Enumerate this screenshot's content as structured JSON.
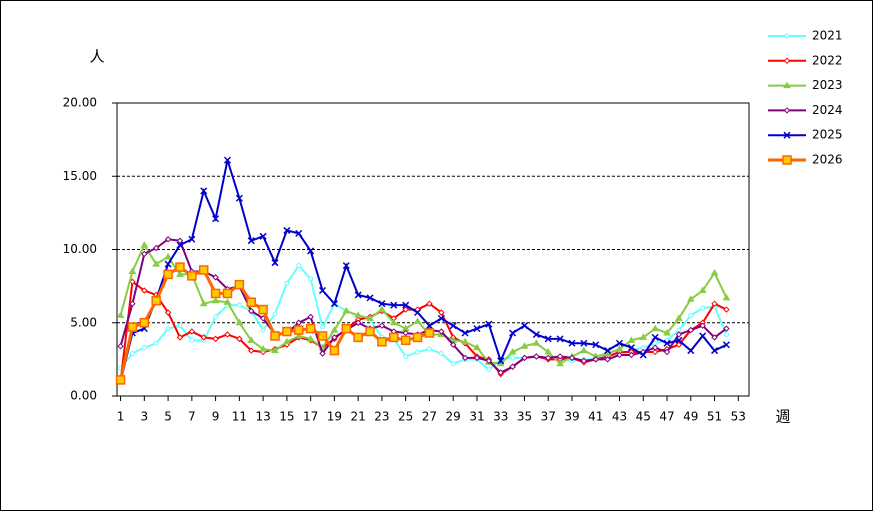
{
  "chart_data": {
    "type": "line",
    "y_label": "人",
    "x_label": "週",
    "x": [
      1,
      2,
      3,
      4,
      5,
      6,
      7,
      8,
      9,
      10,
      11,
      12,
      13,
      14,
      15,
      16,
      17,
      18,
      19,
      20,
      21,
      22,
      23,
      24,
      25,
      26,
      27,
      28,
      29,
      30,
      31,
      32,
      33,
      34,
      35,
      36,
      37,
      38,
      39,
      40,
      41,
      42,
      43,
      44,
      45,
      46,
      47,
      48,
      49,
      50,
      51,
      52
    ],
    "xlim": [
      0.7,
      53.9
    ],
    "xticks": [
      1,
      3,
      5,
      7,
      9,
      11,
      13,
      15,
      17,
      19,
      21,
      23,
      25,
      27,
      29,
      31,
      33,
      35,
      37,
      39,
      41,
      43,
      45,
      47,
      49,
      51,
      53
    ],
    "ylim": [
      0,
      20
    ],
    "yticks": [
      {
        "value": 0,
        "label": "0.00"
      },
      {
        "value": 5,
        "label": "5.00"
      },
      {
        "value": 10,
        "label": "10.00"
      },
      {
        "value": 15,
        "label": "15.00"
      },
      {
        "value": 20,
        "label": "20.00"
      }
    ],
    "grid": true,
    "legend": "right",
    "series": [
      {
        "name": "2021",
        "color": "#66ffff",
        "marker": "circle",
        "values": [
          1.9,
          2.9,
          3.3,
          3.6,
          4.6,
          4.8,
          3.8,
          3.8,
          5.4,
          6.2,
          6.2,
          5.8,
          4.5,
          5.6,
          7.7,
          8.9,
          8.0,
          4.7,
          6.3,
          5.8,
          5.5,
          5.2,
          4.0,
          3.9,
          2.7,
          3.0,
          3.2,
          2.9,
          2.2,
          2.5,
          2.5,
          1.8,
          2.5,
          2.6,
          2.6,
          2.7,
          2.6,
          2.5,
          2.4,
          2.5,
          2.5,
          2.8,
          2.8,
          3.1,
          3.3,
          3.6,
          3.8,
          4.5,
          5.5,
          6.0,
          6.1,
          4.2
        ]
      },
      {
        "name": "2022",
        "color": "#ff0000",
        "marker": "diamond",
        "values": [
          1.0,
          7.8,
          7.2,
          6.9,
          5.7,
          4.0,
          4.4,
          4.0,
          3.9,
          4.2,
          3.9,
          3.1,
          3.0,
          3.2,
          3.5,
          4.0,
          3.8,
          3.3,
          3.9,
          4.6,
          5.2,
          5.4,
          5.8,
          5.3,
          5.9,
          5.9,
          6.3,
          5.7,
          4.0,
          3.6,
          2.7,
          2.5,
          1.5,
          2.0,
          2.6,
          2.7,
          2.5,
          2.5,
          2.6,
          2.3,
          2.5,
          2.7,
          3.0,
          3.0,
          3.0,
          3.0,
          3.2,
          3.5,
          4.5,
          5.0,
          6.3,
          5.9
        ]
      },
      {
        "name": "2023",
        "color": "#88cc44",
        "marker": "triangle",
        "values": [
          5.5,
          8.5,
          10.3,
          9.0,
          9.5,
          8.3,
          8.3,
          6.3,
          6.5,
          6.4,
          5.0,
          3.8,
          3.2,
          3.1,
          3.7,
          4.1,
          3.9,
          3.3,
          4.5,
          5.8,
          5.5,
          5.3,
          5.9,
          5.0,
          4.6,
          5.1,
          4.2,
          4.2,
          3.8,
          3.7,
          3.3,
          2.3,
          2.2,
          3.0,
          3.4,
          3.6,
          3.0,
          2.2,
          2.7,
          3.1,
          2.7,
          2.9,
          3.2,
          3.8,
          4.0,
          4.6,
          4.3,
          5.3,
          6.6,
          7.2,
          8.4,
          6.7
        ]
      },
      {
        "name": "2024",
        "color": "#800080",
        "marker": "diamond",
        "values": [
          3.4,
          6.3,
          9.7,
          10.1,
          10.7,
          10.6,
          8.5,
          8.5,
          8.1,
          7.3,
          7.5,
          5.8,
          5.3,
          4.2,
          4.3,
          5.0,
          5.4,
          2.9,
          4.0,
          4.5,
          5.0,
          4.6,
          4.8,
          4.4,
          4.3,
          4.2,
          4.5,
          4.4,
          3.5,
          2.6,
          2.6,
          2.4,
          1.6,
          2.0,
          2.6,
          2.7,
          2.6,
          2.7,
          2.6,
          2.4,
          2.5,
          2.5,
          2.8,
          2.8,
          3.0,
          3.3,
          3.0,
          4.2,
          4.5,
          4.8,
          4.0,
          4.6
        ]
      },
      {
        "name": "2025",
        "color": "#0000cc",
        "marker": "x",
        "values": [
          1.0,
          4.3,
          4.6,
          6.6,
          9.0,
          10.3,
          10.7,
          14.0,
          12.1,
          16.1,
          13.5,
          10.6,
          10.9,
          9.1,
          11.3,
          11.1,
          9.9,
          7.2,
          6.3,
          8.9,
          6.9,
          6.7,
          6.3,
          6.2,
          6.2,
          5.7,
          4.8,
          5.3,
          4.8,
          4.3,
          4.6,
          4.9,
          2.4,
          4.3,
          4.8,
          4.2,
          3.9,
          3.9,
          3.6,
          3.6,
          3.5,
          3.1,
          3.6,
          3.3,
          2.8,
          4.0,
          3.6,
          3.8,
          3.1,
          4.1,
          3.1,
          3.5
        ]
      },
      {
        "name": "2026",
        "color": "#ff6600",
        "marker": "square",
        "values": [
          1.1,
          4.7,
          5.0,
          6.5,
          8.3,
          8.8,
          8.2,
          8.6,
          7.0,
          7.0,
          7.6,
          6.4,
          5.9,
          4.1,
          4.4,
          4.5,
          4.6,
          4.1,
          3.1,
          4.6,
          4.0,
          4.4,
          3.7,
          4.0,
          3.8,
          4.0,
          4.3,
          null,
          null,
          null,
          null,
          null,
          null,
          null,
          null,
          null,
          null,
          null,
          null,
          null,
          null,
          null,
          null,
          null,
          null,
          null,
          null,
          null,
          null,
          null,
          null,
          null
        ]
      }
    ]
  }
}
